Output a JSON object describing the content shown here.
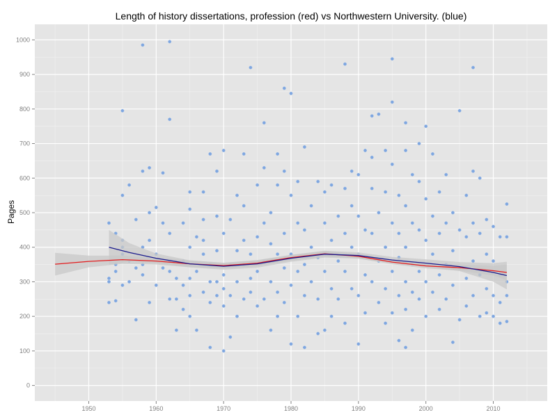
{
  "chart_data": {
    "type": "scatter",
    "title": "Length of history dissertations, profession (red) vs Northwestern University. (blue)",
    "xlabel": "",
    "ylabel": "Pages",
    "xlim": [
      1942,
      2018
    ],
    "ylim": [
      -45,
      1045
    ],
    "x_ticks": [
      1950,
      1960,
      1970,
      1980,
      1990,
      2000,
      2010
    ],
    "y_ticks": [
      0,
      100,
      200,
      300,
      400,
      500,
      600,
      700,
      800,
      900,
      1000
    ],
    "grid": true,
    "colors": {
      "panel": "#e5e5e5",
      "grid_major": "#ffffff",
      "grid_minor": "#f2f2f2",
      "points": "#7ea6e0",
      "profession_line": "#e31a1c",
      "northwestern_line": "#1a1a8c",
      "ribbon": "#c8c8c8"
    },
    "series": [
      {
        "name": "profession (red)",
        "type": "line",
        "x": [
          1945,
          1950,
          1955,
          1960,
          1965,
          1970,
          1975,
          1980,
          1985,
          1990,
          1995,
          2000,
          2005,
          2010,
          2012
        ],
        "y": [
          351,
          359,
          364,
          360,
          352,
          347,
          354,
          370,
          381,
          374,
          357,
          346,
          341,
          332,
          327
        ],
        "ribbon_low": [
          318,
          342,
          352,
          350,
          342,
          339,
          346,
          362,
          373,
          367,
          351,
          339,
          332,
          318,
          304
        ],
        "ribbon_high": [
          384,
          376,
          376,
          370,
          362,
          355,
          362,
          378,
          389,
          381,
          363,
          353,
          350,
          346,
          350
        ]
      },
      {
        "name": "Northwestern University. (blue)",
        "type": "line",
        "x": [
          1953,
          1956,
          1960,
          1965,
          1970,
          1975,
          1980,
          1985,
          1990,
          1995,
          2000,
          2005,
          2010,
          2012
        ],
        "y": [
          400,
          385,
          368,
          352,
          345,
          352,
          368,
          380,
          376,
          363,
          354,
          344,
          327,
          318
        ],
        "ribbon_low": [
          350,
          358,
          354,
          342,
          335,
          341,
          358,
          370,
          367,
          354,
          343,
          331,
          300,
          278
        ],
        "ribbon_high": [
          450,
          412,
          382,
          362,
          355,
          363,
          378,
          390,
          385,
          372,
          365,
          357,
          354,
          358
        ]
      }
    ],
    "points": [
      [
        1953,
        470
      ],
      [
        1953,
        300
      ],
      [
        1953,
        240
      ],
      [
        1953,
        310
      ],
      [
        1954,
        440
      ],
      [
        1954,
        350
      ],
      [
        1954,
        330
      ],
      [
        1954,
        245
      ],
      [
        1955,
        550
      ],
      [
        1955,
        795
      ],
      [
        1955,
        400
      ],
      [
        1955,
        380
      ],
      [
        1955,
        290
      ],
      [
        1955,
        420
      ],
      [
        1956,
        580
      ],
      [
        1956,
        300
      ],
      [
        1956,
        360
      ],
      [
        1957,
        480
      ],
      [
        1957,
        340
      ],
      [
        1957,
        190
      ],
      [
        1958,
        985
      ],
      [
        1958,
        620
      ],
      [
        1958,
        400
      ],
      [
        1958,
        320
      ],
      [
        1958,
        350
      ],
      [
        1959,
        630
      ],
      [
        1959,
        500
      ],
      [
        1959,
        240
      ],
      [
        1959,
        420
      ],
      [
        1960,
        515
      ],
      [
        1960,
        380
      ],
      [
        1960,
        290
      ],
      [
        1961,
        615
      ],
      [
        1961,
        340
      ],
      [
        1961,
        470
      ],
      [
        1962,
        995
      ],
      [
        1962,
        770
      ],
      [
        1962,
        250
      ],
      [
        1962,
        440
      ],
      [
        1962,
        360
      ],
      [
        1962,
        330
      ],
      [
        1963,
        160
      ],
      [
        1963,
        250
      ],
      [
        1963,
        310
      ],
      [
        1964,
        470
      ],
      [
        1964,
        290
      ],
      [
        1964,
        220
      ],
      [
        1964,
        360
      ],
      [
        1965,
        560
      ],
      [
        1965,
        510
      ],
      [
        1965,
        400
      ],
      [
        1965,
        310
      ],
      [
        1965,
        260
      ],
      [
        1965,
        200
      ],
      [
        1966,
        430
      ],
      [
        1966,
        330
      ],
      [
        1966,
        160
      ],
      [
        1967,
        560
      ],
      [
        1967,
        480
      ],
      [
        1967,
        380
      ],
      [
        1967,
        270
      ],
      [
        1967,
        420
      ],
      [
        1968,
        670
      ],
      [
        1968,
        110
      ],
      [
        1968,
        300
      ],
      [
        1968,
        240
      ],
      [
        1968,
        350
      ],
      [
        1969,
        620
      ],
      [
        1969,
        490
      ],
      [
        1969,
        260
      ],
      [
        1969,
        390
      ],
      [
        1969,
        300
      ],
      [
        1970,
        680
      ],
      [
        1970,
        100
      ],
      [
        1970,
        320
      ],
      [
        1970,
        230
      ],
      [
        1970,
        440
      ],
      [
        1970,
        280
      ],
      [
        1971,
        480
      ],
      [
        1971,
        140
      ],
      [
        1971,
        350
      ],
      [
        1971,
        260
      ],
      [
        1972,
        550
      ],
      [
        1972,
        300
      ],
      [
        1972,
        200
      ],
      [
        1972,
        390
      ],
      [
        1973,
        670
      ],
      [
        1973,
        520
      ],
      [
        1973,
        350
      ],
      [
        1973,
        250
      ],
      [
        1973,
        420
      ],
      [
        1974,
        920
      ],
      [
        1974,
        380
      ],
      [
        1974,
        270
      ],
      [
        1974,
        310
      ],
      [
        1975,
        580
      ],
      [
        1975,
        430
      ],
      [
        1975,
        230
      ],
      [
        1975,
        330
      ],
      [
        1976,
        760
      ],
      [
        1976,
        630
      ],
      [
        1976,
        470
      ],
      [
        1976,
        360
      ],
      [
        1976,
        250
      ],
      [
        1977,
        500
      ],
      [
        1977,
        300
      ],
      [
        1977,
        160
      ],
      [
        1977,
        410
      ],
      [
        1978,
        670
      ],
      [
        1978,
        580
      ],
      [
        1978,
        380
      ],
      [
        1978,
        270
      ],
      [
        1978,
        200
      ],
      [
        1979,
        860
      ],
      [
        1979,
        620
      ],
      [
        1979,
        440
      ],
      [
        1979,
        340
      ],
      [
        1979,
        240
      ],
      [
        1980,
        845
      ],
      [
        1980,
        550
      ],
      [
        1980,
        380
      ],
      [
        1980,
        120
      ],
      [
        1980,
        290
      ],
      [
        1981,
        590
      ],
      [
        1981,
        470
      ],
      [
        1981,
        330
      ],
      [
        1981,
        200
      ],
      [
        1982,
        690
      ],
      [
        1982,
        110
      ],
      [
        1982,
        450
      ],
      [
        1982,
        350
      ],
      [
        1982,
        260
      ],
      [
        1983,
        520
      ],
      [
        1983,
        400
      ],
      [
        1983,
        300
      ],
      [
        1984,
        590
      ],
      [
        1984,
        150
      ],
      [
        1984,
        370
      ],
      [
        1984,
        250
      ],
      [
        1985,
        560
      ],
      [
        1985,
        470
      ],
      [
        1985,
        330
      ],
      [
        1985,
        160
      ],
      [
        1986,
        580
      ],
      [
        1986,
        420
      ],
      [
        1986,
        280
      ],
      [
        1986,
        200
      ],
      [
        1987,
        490
      ],
      [
        1987,
        360
      ],
      [
        1987,
        250
      ],
      [
        1988,
        930
      ],
      [
        1988,
        570
      ],
      [
        1988,
        440
      ],
      [
        1988,
        330
      ],
      [
        1988,
        180
      ],
      [
        1989,
        620
      ],
      [
        1989,
        520
      ],
      [
        1989,
        400
      ],
      [
        1989,
        280
      ],
      [
        1990,
        610
      ],
      [
        1990,
        490
      ],
      [
        1990,
        380
      ],
      [
        1990,
        120
      ],
      [
        1990,
        260
      ],
      [
        1991,
        680
      ],
      [
        1991,
        450
      ],
      [
        1991,
        320
      ],
      [
        1991,
        210
      ],
      [
        1992,
        780
      ],
      [
        1992,
        660
      ],
      [
        1992,
        570
      ],
      [
        1992,
        440
      ],
      [
        1992,
        300
      ],
      [
        1993,
        785
      ],
      [
        1993,
        500
      ],
      [
        1993,
        360
      ],
      [
        1993,
        240
      ],
      [
        1994,
        680
      ],
      [
        1994,
        560
      ],
      [
        1994,
        400
      ],
      [
        1994,
        280
      ],
      [
        1994,
        180
      ],
      [
        1995,
        945
      ],
      [
        1995,
        820
      ],
      [
        1995,
        640
      ],
      [
        1995,
        470
      ],
      [
        1995,
        330
      ],
      [
        1995,
        210
      ],
      [
        1996,
        550
      ],
      [
        1996,
        440
      ],
      [
        1996,
        370
      ],
      [
        1996,
        260
      ],
      [
        1996,
        130
      ],
      [
        1997,
        760
      ],
      [
        1997,
        680
      ],
      [
        1997,
        520
      ],
      [
        1997,
        400
      ],
      [
        1997,
        300
      ],
      [
        1997,
        220
      ],
      [
        1997,
        110
      ],
      [
        1998,
        610
      ],
      [
        1998,
        470
      ],
      [
        1998,
        350
      ],
      [
        1998,
        270
      ],
      [
        1998,
        160
      ],
      [
        1999,
        700
      ],
      [
        1999,
        590
      ],
      [
        1999,
        450
      ],
      [
        1999,
        330
      ],
      [
        1999,
        250
      ],
      [
        2000,
        750
      ],
      [
        2000,
        540
      ],
      [
        2000,
        420
      ],
      [
        2000,
        300
      ],
      [
        2000,
        200
      ],
      [
        2001,
        670
      ],
      [
        2001,
        490
      ],
      [
        2001,
        380
      ],
      [
        2001,
        270
      ],
      [
        2002,
        560
      ],
      [
        2002,
        440
      ],
      [
        2002,
        320
      ],
      [
        2002,
        220
      ],
      [
        2003,
        610
      ],
      [
        2003,
        470
      ],
      [
        2003,
        350
      ],
      [
        2003,
        250
      ],
      [
        2004,
        500
      ],
      [
        2004,
        390
      ],
      [
        2004,
        290
      ],
      [
        2004,
        125
      ],
      [
        2005,
        795
      ],
      [
        2005,
        450
      ],
      [
        2005,
        340
      ],
      [
        2005,
        190
      ],
      [
        2006,
        550
      ],
      [
        2006,
        430
      ],
      [
        2006,
        310
      ],
      [
        2006,
        230
      ],
      [
        2007,
        620
      ],
      [
        2007,
        470
      ],
      [
        2007,
        360
      ],
      [
        2007,
        260
      ],
      [
        2007,
        920
      ],
      [
        2008,
        600
      ],
      [
        2008,
        440
      ],
      [
        2008,
        320
      ],
      [
        2008,
        200
      ],
      [
        2009,
        480
      ],
      [
        2009,
        380
      ],
      [
        2009,
        280
      ],
      [
        2009,
        210
      ],
      [
        2010,
        460
      ],
      [
        2010,
        360
      ],
      [
        2010,
        260
      ],
      [
        2010,
        200
      ],
      [
        2011,
        430
      ],
      [
        2011,
        320
      ],
      [
        2011,
        240
      ],
      [
        2011,
        180
      ],
      [
        2012,
        525
      ],
      [
        2012,
        430
      ],
      [
        2012,
        300
      ],
      [
        2012,
        260
      ],
      [
        2012,
        185
      ]
    ]
  }
}
